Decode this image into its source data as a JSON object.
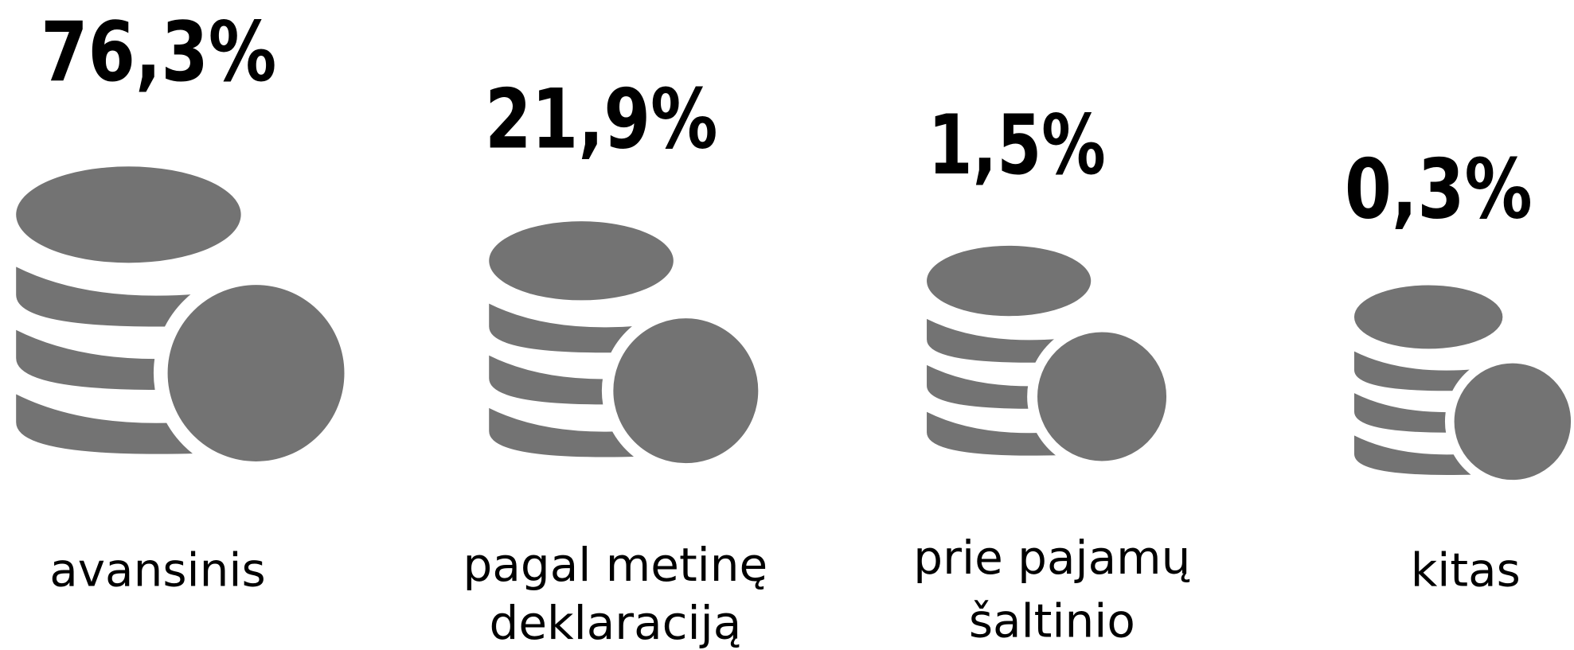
{
  "items": [
    {
      "value": "76,3%",
      "label_lines": [
        "avansinis"
      ]
    },
    {
      "value": "21,9%",
      "label_lines": [
        "pagal metinę",
        "deklaraciją"
      ]
    },
    {
      "value": "1,5%",
      "label_lines": [
        "prie pajamų",
        "šaltinio"
      ]
    },
    {
      "value": "0,3%",
      "label_lines": [
        "kitas"
      ]
    }
  ]
}
